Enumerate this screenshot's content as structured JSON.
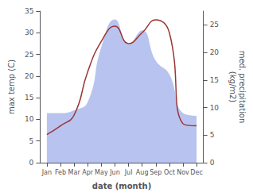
{
  "chart_data": {
    "type": "line",
    "xlabel": "date (month)",
    "ylabel": "max temp (C)",
    "y2label": "med. precipitation\n(kg/m2)",
    "categories": [
      "Jan",
      "Feb",
      "Mar",
      "Apr",
      "May",
      "Jun",
      "Jul",
      "Aug",
      "Sep",
      "Oct",
      "Nov",
      "Dec"
    ],
    "series": [
      {
        "type": "line",
        "color": "#9b3535",
        "values": [
          6.5,
          8.5,
          11.0,
          21.0,
          28.0,
          31.5,
          27.5,
          30.0,
          33.0,
          30.0,
          9.0,
          8.5
        ]
      },
      {
        "type": "area",
        "color": "#b8c4ef",
        "axis": "y2",
        "values": [
          9.0,
          9.0,
          9.5,
          11.0,
          21.0,
          26.0,
          21.5,
          24.0,
          18.5,
          16.0,
          9.0,
          8.5
        ]
      }
    ],
    "ylim": [
      0,
      35
    ],
    "yticks": [
      0,
      5,
      10,
      15,
      20,
      25,
      30,
      35
    ],
    "y2lim": [
      0,
      27.5
    ],
    "y2ticks": [
      0,
      5,
      10,
      15,
      20,
      25
    ],
    "grid": false
  }
}
